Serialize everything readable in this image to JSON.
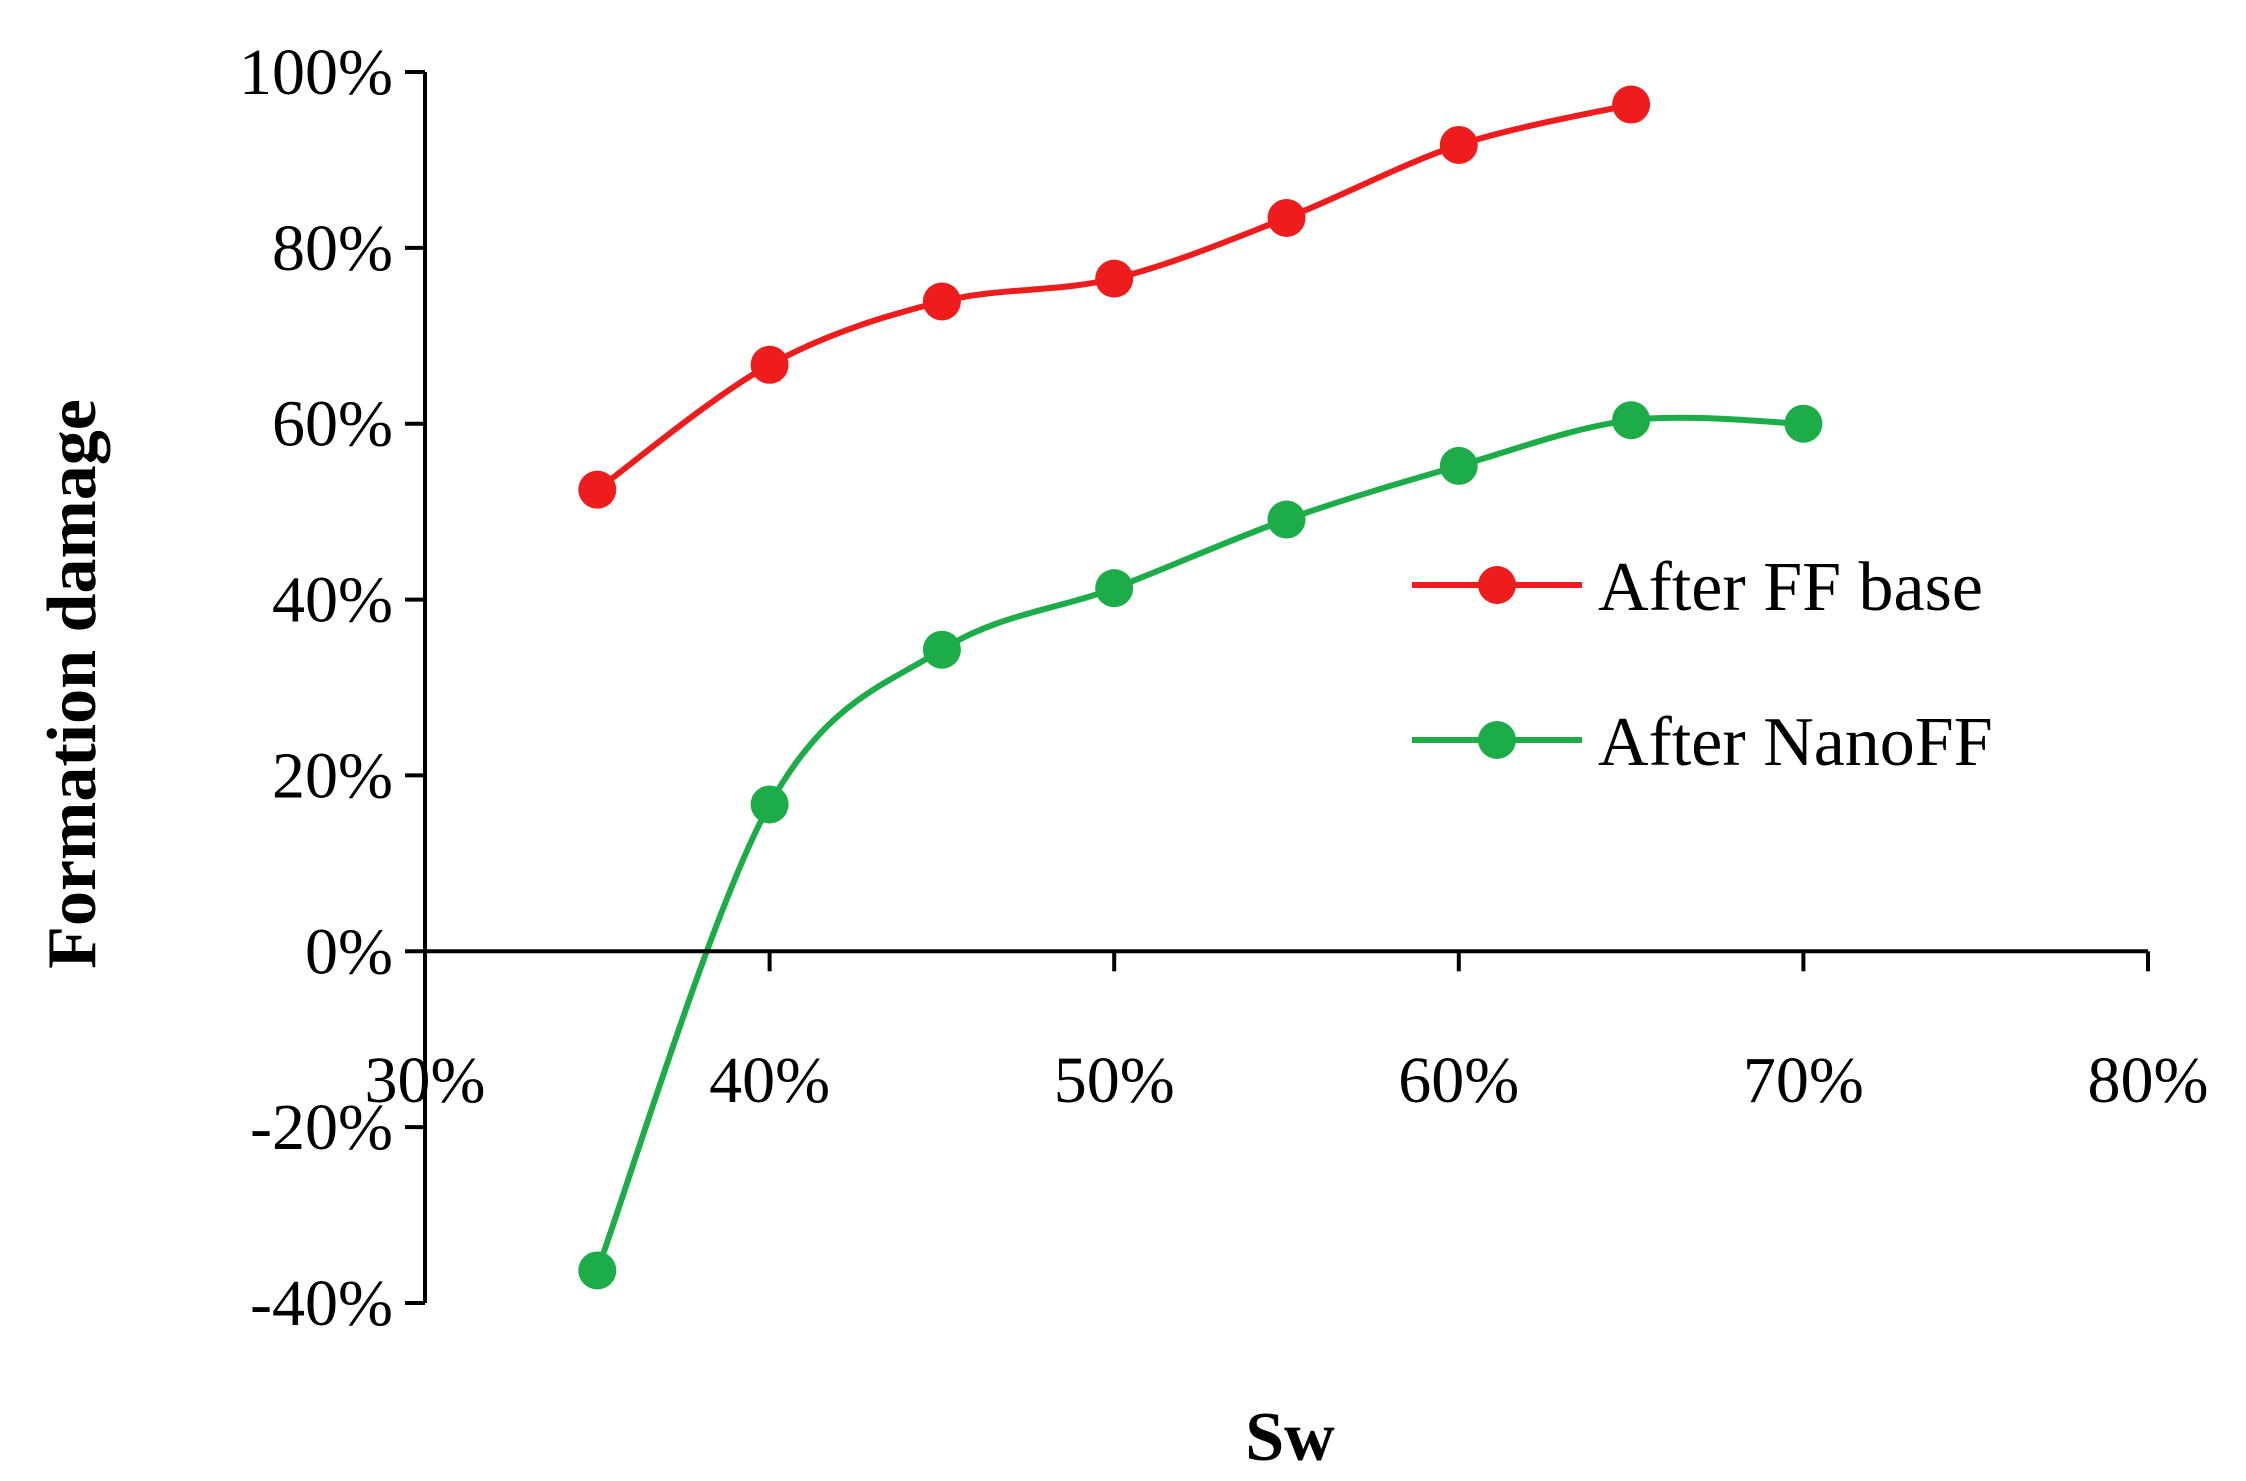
{
  "chart_data": {
    "type": "line",
    "title": "",
    "xlabel": "Sw",
    "ylabel": "Formation damage",
    "xlim": [
      0.3,
      0.8
    ],
    "ylim": [
      -0.4,
      1.0
    ],
    "x_ticks": [
      0.3,
      0.4,
      0.5,
      0.6,
      0.7,
      0.8
    ],
    "x_tick_labels": [
      "30%",
      "40%",
      "50%",
      "60%",
      "70%",
      "80%"
    ],
    "y_ticks": [
      -0.4,
      -0.2,
      0.0,
      0.2,
      0.4,
      0.6,
      0.8,
      1.0
    ],
    "y_tick_labels": [
      "-40%",
      "-20%",
      "0%",
      "20%",
      "40%",
      "60%",
      "80%",
      "100%"
    ],
    "grid": false,
    "smooth": true,
    "legend_position": "right",
    "series": [
      {
        "name": "After FF base",
        "color": "#ee1c1c",
        "x": [
          0.35,
          0.4,
          0.45,
          0.5,
          0.55,
          0.6,
          0.65
        ],
        "values": [
          0.525,
          0.667,
          0.739,
          0.765,
          0.834,
          0.917,
          0.963
        ]
      },
      {
        "name": "After NanoFF",
        "color": "#1cad48",
        "x": [
          0.35,
          0.4,
          0.45,
          0.5,
          0.55,
          0.6,
          0.65,
          0.7
        ],
        "values": [
          -0.363,
          0.167,
          0.343,
          0.413,
          0.491,
          0.552,
          0.604,
          0.6
        ]
      }
    ]
  }
}
